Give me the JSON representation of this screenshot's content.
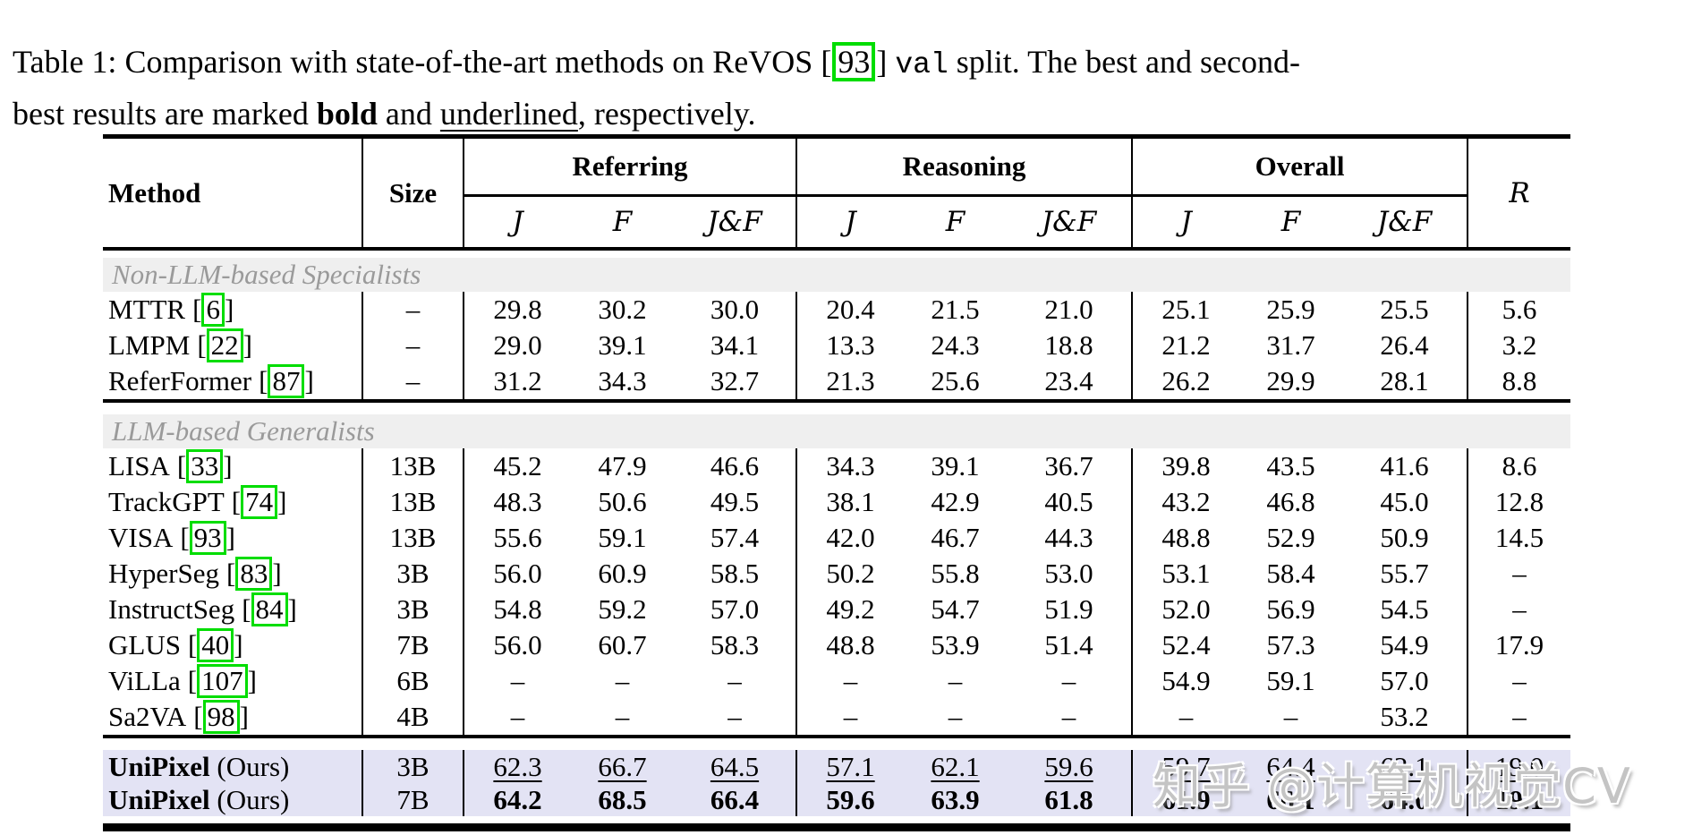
{
  "brackets": [
    "[",
    "]"
  ],
  "caption": {
    "part1": "Table 1: Comparison with state-of-the-art methods on ReVOS ",
    "citation": "93",
    "part2": " ",
    "code": "val",
    "part3": " split. The best and second-",
    "part4": "best results are marked ",
    "bold_word": "bold",
    "part5": " and ",
    "underlined_word": "underlined",
    "part6": ", respectively."
  },
  "table": {
    "header": {
      "method": "Method",
      "size": "Size",
      "groups": [
        "Referring",
        "Reasoning",
        "Overall"
      ],
      "metrics": [
        "J",
        "F",
        "J&F"
      ],
      "rank": "R"
    },
    "sections": [
      {
        "header": "Non-LLM-based Specialists",
        "highlight": false,
        "rows": [
          {
            "method": "MTTR",
            "cite": "6",
            "size": "–",
            "emphasis": "none",
            "method_bold": false,
            "values": [
              "29.8",
              "30.2",
              "30.0",
              "20.4",
              "21.5",
              "21.0",
              "25.1",
              "25.9",
              "25.5",
              "5.6"
            ]
          },
          {
            "method": "LMPM",
            "cite": "22",
            "size": "–",
            "emphasis": "none",
            "method_bold": false,
            "values": [
              "29.0",
              "39.1",
              "34.1",
              "13.3",
              "24.3",
              "18.8",
              "21.2",
              "31.7",
              "26.4",
              "3.2"
            ]
          },
          {
            "method": "ReferFormer",
            "cite": "87",
            "size": "–",
            "emphasis": "none",
            "method_bold": false,
            "values": [
              "31.2",
              "34.3",
              "32.7",
              "21.3",
              "25.6",
              "23.4",
              "26.2",
              "29.9",
              "28.1",
              "8.8"
            ]
          }
        ]
      },
      {
        "header": "LLM-based Generalists",
        "highlight": false,
        "rows": [
          {
            "method": "LISA",
            "cite": "33",
            "size": "13B",
            "emphasis": "none",
            "method_bold": false,
            "values": [
              "45.2",
              "47.9",
              "46.6",
              "34.3",
              "39.1",
              "36.7",
              "39.8",
              "43.5",
              "41.6",
              "8.6"
            ]
          },
          {
            "method": "TrackGPT",
            "cite": "74",
            "size": "13B",
            "emphasis": "none",
            "method_bold": false,
            "values": [
              "48.3",
              "50.6",
              "49.5",
              "38.1",
              "42.9",
              "40.5",
              "43.2",
              "46.8",
              "45.0",
              "12.8"
            ]
          },
          {
            "method": "VISA",
            "cite": "93",
            "size": "13B",
            "emphasis": "none",
            "method_bold": false,
            "values": [
              "55.6",
              "59.1",
              "57.4",
              "42.0",
              "46.7",
              "44.3",
              "48.8",
              "52.9",
              "50.9",
              "14.5"
            ]
          },
          {
            "method": "HyperSeg",
            "cite": "83",
            "size": "3B",
            "emphasis": "none",
            "method_bold": false,
            "values": [
              "56.0",
              "60.9",
              "58.5",
              "50.2",
              "55.8",
              "53.0",
              "53.1",
              "58.4",
              "55.7",
              "–"
            ]
          },
          {
            "method": "InstructSeg",
            "cite": "84",
            "size": "3B",
            "emphasis": "none",
            "method_bold": false,
            "values": [
              "54.8",
              "59.2",
              "57.0",
              "49.2",
              "54.7",
              "51.9",
              "52.0",
              "56.9",
              "54.5",
              "–"
            ]
          },
          {
            "method": "GLUS",
            "cite": "40",
            "size": "7B",
            "emphasis": "none",
            "method_bold": false,
            "values": [
              "56.0",
              "60.7",
              "58.3",
              "48.8",
              "53.9",
              "51.4",
              "52.4",
              "57.3",
              "54.9",
              "17.9"
            ]
          },
          {
            "method": "ViLLa",
            "cite": "107",
            "size": "6B",
            "emphasis": "none",
            "method_bold": false,
            "values": [
              "–",
              "–",
              "–",
              "–",
              "–",
              "–",
              "54.9",
              "59.1",
              "57.0",
              "–"
            ]
          },
          {
            "method": "Sa2VA",
            "cite": "98",
            "size": "4B",
            "emphasis": "none",
            "method_bold": false,
            "values": [
              "–",
              "–",
              "–",
              "–",
              "–",
              "–",
              "–",
              "–",
              "53.2",
              "–"
            ]
          }
        ]
      },
      {
        "header": null,
        "highlight": true,
        "rows": [
          {
            "method": "UniPixel",
            "method_suffix": " (Ours)",
            "cite": null,
            "size": "3B",
            "emphasis": "underline",
            "method_bold": true,
            "values": [
              "62.3",
              "66.7",
              "64.5",
              "57.1",
              "62.1",
              "59.6",
              "59.7",
              "64.4",
              "62.1",
              "19.0"
            ]
          },
          {
            "method": "UniPixel",
            "method_suffix": " (Ours)",
            "cite": null,
            "size": "7B",
            "emphasis": "bold",
            "method_bold": true,
            "values": [
              "64.2",
              "68.5",
              "66.4",
              "59.6",
              "63.9",
              "61.8",
              "61.9",
              "66.1",
              "64.0",
              "19.1"
            ]
          }
        ]
      }
    ]
  },
  "watermark": {
    "text": "知乎 @计算机视觉CV"
  },
  "colors": {
    "highlight_row": "#e3e3f4",
    "section_band": "#efefef",
    "citation_box": "#00dd00",
    "watermark_gray": "#c4c4c4",
    "section_text": "#9a9a9a"
  }
}
